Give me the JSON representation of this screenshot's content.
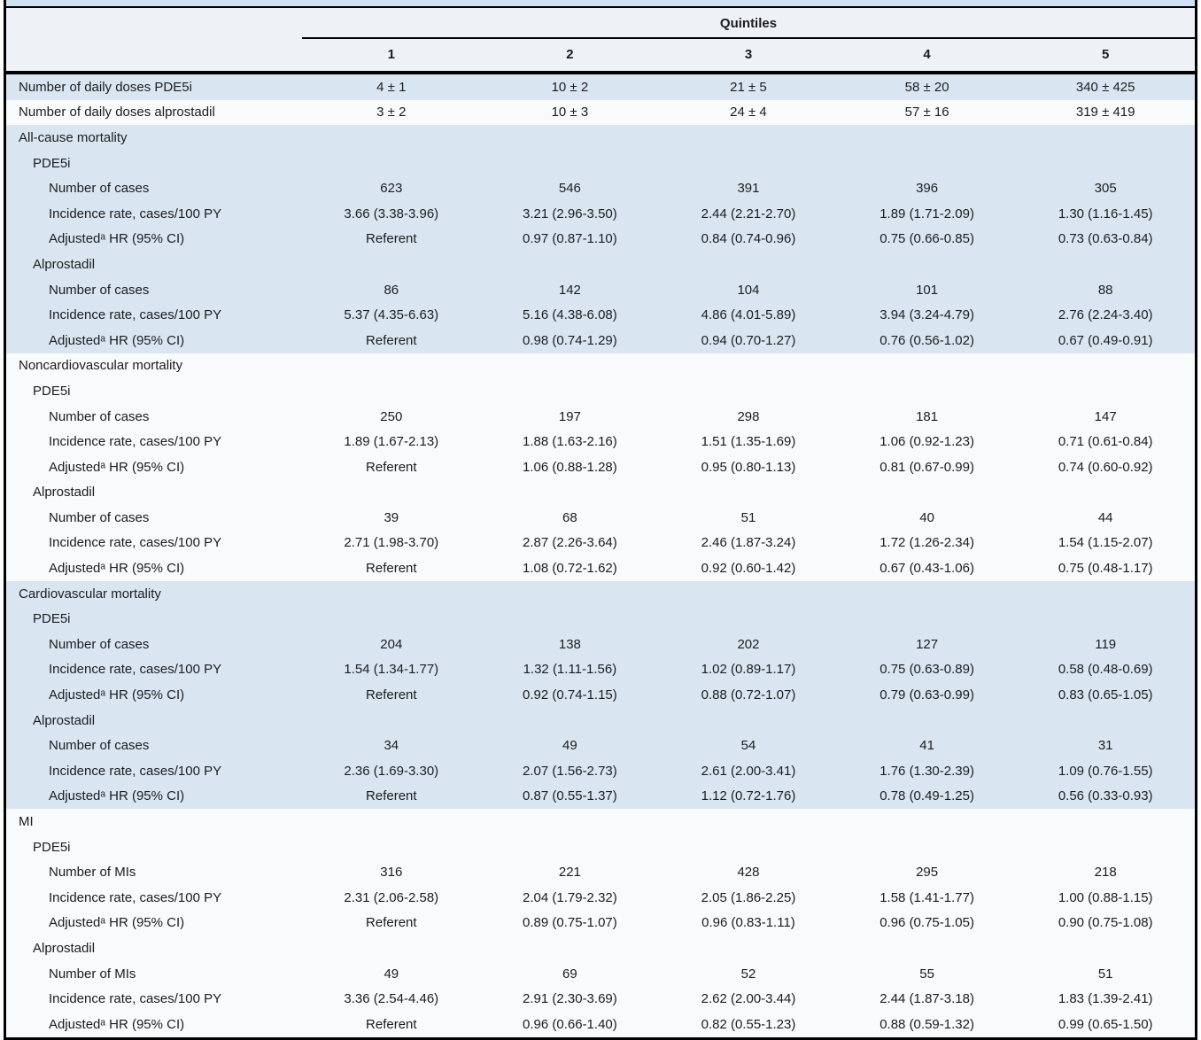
{
  "colors": {
    "row_blue": "#d9e6f2",
    "row_white": "#f9fafc",
    "header_band": "#eef2f7",
    "top_strip": "#cfe2f3",
    "border": "#000000"
  },
  "table": {
    "header": {
      "group_label": "Quintiles",
      "columns": [
        "1",
        "2",
        "3",
        "4",
        "5"
      ]
    },
    "rows": [
      {
        "label": "Number of daily doses PDE5i",
        "indent": 0,
        "shade": "blue",
        "values": [
          "4 ± 1",
          "10 ± 2",
          "21 ± 5",
          "58 ± 20",
          "340 ± 425"
        ]
      },
      {
        "label": "Number of daily doses alprostadil",
        "indent": 0,
        "shade": "white",
        "values": [
          "3 ± 2",
          "10 ± 3",
          "24 ± 4",
          "57 ± 16",
          "319 ± 419"
        ]
      },
      {
        "label": "All-cause mortality",
        "indent": 0,
        "shade": "blue",
        "values": [
          "",
          "",
          "",
          "",
          ""
        ]
      },
      {
        "label": "PDE5i",
        "indent": 1,
        "shade": "blue",
        "values": [
          "",
          "",
          "",
          "",
          ""
        ]
      },
      {
        "label": "Number of cases",
        "indent": 2,
        "shade": "blue",
        "values": [
          "623",
          "546",
          "391",
          "396",
          "305"
        ]
      },
      {
        "label": "Incidence rate, cases/100 PY",
        "indent": 2,
        "shade": "blue",
        "values": [
          "3.66 (3.38-3.96)",
          "3.21 (2.96-3.50)",
          "2.44 (2.21-2.70)",
          "1.89 (1.71-2.09)",
          "1.30 (1.16-1.45)"
        ]
      },
      {
        "label": "Adjustedᵃ HR (95% CI)",
        "indent": 2,
        "shade": "blue",
        "values": [
          "Referent",
          "0.97 (0.87-1.10)",
          "0.84 (0.74-0.96)",
          "0.75 (0.66-0.85)",
          "0.73 (0.63-0.84)"
        ]
      },
      {
        "label": "Alprostadil",
        "indent": 1,
        "shade": "blue",
        "values": [
          "",
          "",
          "",
          "",
          ""
        ]
      },
      {
        "label": "Number of cases",
        "indent": 2,
        "shade": "blue",
        "values": [
          "86",
          "142",
          "104",
          "101",
          "88"
        ]
      },
      {
        "label": "Incidence rate, cases/100 PY",
        "indent": 2,
        "shade": "blue",
        "values": [
          "5.37 (4.35-6.63)",
          "5.16 (4.38-6.08)",
          "4.86 (4.01-5.89)",
          "3.94 (3.24-4.79)",
          "2.76 (2.24-3.40)"
        ]
      },
      {
        "label": "Adjustedᵃ HR (95% CI)",
        "indent": 2,
        "shade": "blue",
        "values": [
          "Referent",
          "0.98 (0.74-1.29)",
          "0.94 (0.70-1.27)",
          "0.76 (0.56-1.02)",
          "0.67 (0.49-0.91)"
        ]
      },
      {
        "label": "Noncardiovascular mortality",
        "indent": 0,
        "shade": "white",
        "values": [
          "",
          "",
          "",
          "",
          ""
        ]
      },
      {
        "label": "PDE5i",
        "indent": 1,
        "shade": "white",
        "values": [
          "",
          "",
          "",
          "",
          ""
        ]
      },
      {
        "label": "Number of cases",
        "indent": 2,
        "shade": "white",
        "values": [
          "250",
          "197",
          "298",
          "181",
          "147"
        ]
      },
      {
        "label": "Incidence rate, cases/100 PY",
        "indent": 2,
        "shade": "white",
        "values": [
          "1.89 (1.67-2.13)",
          "1.88 (1.63-2.16)",
          "1.51 (1.35-1.69)",
          "1.06 (0.92-1.23)",
          "0.71 (0.61-0.84)"
        ]
      },
      {
        "label": "Adjustedᵃ HR (95% CI)",
        "indent": 2,
        "shade": "white",
        "values": [
          "Referent",
          "1.06 (0.88-1.28)",
          "0.95 (0.80-1.13)",
          "0.81 (0.67-0.99)",
          "0.74 (0.60-0.92)"
        ]
      },
      {
        "label": "Alprostadil",
        "indent": 1,
        "shade": "white",
        "values": [
          "",
          "",
          "",
          "",
          ""
        ]
      },
      {
        "label": "Number of cases",
        "indent": 2,
        "shade": "white",
        "values": [
          "39",
          "68",
          "51",
          "40",
          "44"
        ]
      },
      {
        "label": "Incidence rate, cases/100 PY",
        "indent": 2,
        "shade": "white",
        "values": [
          "2.71 (1.98-3.70)",
          "2.87 (2.26-3.64)",
          "2.46 (1.87-3.24)",
          "1.72 (1.26-2.34)",
          "1.54 (1.15-2.07)"
        ]
      },
      {
        "label": "Adjustedᵃ HR (95% CI)",
        "indent": 2,
        "shade": "white",
        "values": [
          "Referent",
          "1.08 (0.72-1.62)",
          "0.92 (0.60-1.42)",
          "0.67 (0.43-1.06)",
          "0.75 (0.48-1.17)"
        ]
      },
      {
        "label": "Cardiovascular mortality",
        "indent": 0,
        "shade": "blue",
        "values": [
          "",
          "",
          "",
          "",
          ""
        ]
      },
      {
        "label": "PDE5i",
        "indent": 1,
        "shade": "blue",
        "values": [
          "",
          "",
          "",
          "",
          ""
        ]
      },
      {
        "label": "Number of cases",
        "indent": 2,
        "shade": "blue",
        "values": [
          "204",
          "138",
          "202",
          "127",
          "119"
        ]
      },
      {
        "label": "Incidence rate, cases/100 PY",
        "indent": 2,
        "shade": "blue",
        "values": [
          "1.54 (1.34-1.77)",
          "1.32 (1.11-1.56)",
          "1.02 (0.89-1.17)",
          "0.75 (0.63-0.89)",
          "0.58 (0.48-0.69)"
        ]
      },
      {
        "label": "Adjustedᵃ HR (95% CI)",
        "indent": 2,
        "shade": "blue",
        "values": [
          "Referent",
          "0.92 (0.74-1.15)",
          "0.88 (0.72-1.07)",
          "0.79 (0.63-0.99)",
          "0.83 (0.65-1.05)"
        ]
      },
      {
        "label": "Alprostadil",
        "indent": 1,
        "shade": "blue",
        "values": [
          "",
          "",
          "",
          "",
          ""
        ]
      },
      {
        "label": "Number of cases",
        "indent": 2,
        "shade": "blue",
        "values": [
          "34",
          "49",
          "54",
          "41",
          "31"
        ]
      },
      {
        "label": "Incidence rate, cases/100 PY",
        "indent": 2,
        "shade": "blue",
        "values": [
          "2.36 (1.69-3.30)",
          "2.07 (1.56-2.73)",
          "2.61 (2.00-3.41)",
          "1.76 (1.30-2.39)",
          "1.09 (0.76-1.55)"
        ]
      },
      {
        "label": "Adjustedᵃ HR (95% CI)",
        "indent": 2,
        "shade": "blue",
        "values": [
          "Referent",
          "0.87 (0.55-1.37)",
          "1.12 (0.72-1.76)",
          "0.78 (0.49-1.25)",
          "0.56 (0.33-0.93)"
        ]
      },
      {
        "label": "MI",
        "indent": 0,
        "shade": "white",
        "values": [
          "",
          "",
          "",
          "",
          ""
        ]
      },
      {
        "label": "PDE5i",
        "indent": 1,
        "shade": "white",
        "values": [
          "",
          "",
          "",
          "",
          ""
        ]
      },
      {
        "label": "Number of MIs",
        "indent": 2,
        "shade": "white",
        "values": [
          "316",
          "221",
          "428",
          "295",
          "218"
        ]
      },
      {
        "label": "Incidence rate, cases/100 PY",
        "indent": 2,
        "shade": "white",
        "values": [
          "2.31 (2.06-2.58)",
          "2.04 (1.79-2.32)",
          "2.05 (1.86-2.25)",
          "1.58 (1.41-1.77)",
          "1.00 (0.88-1.15)"
        ]
      },
      {
        "label": "Adjustedᵃ HR (95% CI)",
        "indent": 2,
        "shade": "white",
        "values": [
          "Referent",
          "0.89 (0.75-1.07)",
          "0.96 (0.83-1.11)",
          "0.96 (0.75-1.05)",
          "0.90 (0.75-1.08)"
        ]
      },
      {
        "label": "Alprostadil",
        "indent": 1,
        "shade": "white",
        "values": [
          "",
          "",
          "",
          "",
          ""
        ]
      },
      {
        "label": "Number of MIs",
        "indent": 2,
        "shade": "white",
        "values": [
          "49",
          "69",
          "52",
          "55",
          "51"
        ]
      },
      {
        "label": "Incidence rate, cases/100 PY",
        "indent": 2,
        "shade": "white",
        "values": [
          "3.36 (2.54-4.46)",
          "2.91 (2.30-3.69)",
          "2.62 (2.00-3.44)",
          "2.44 (1.87-3.18)",
          "1.83 (1.39-2.41)"
        ]
      },
      {
        "label": "Adjustedᵃ HR (95% CI)",
        "indent": 2,
        "shade": "white",
        "values": [
          "Referent",
          "0.96 (0.66-1.40)",
          "0.82 (0.55-1.23)",
          "0.88 (0.59-1.32)",
          "0.99 (0.65-1.50)"
        ]
      }
    ]
  }
}
